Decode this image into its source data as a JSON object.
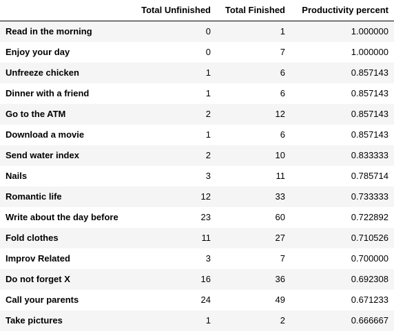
{
  "table": {
    "columns": [
      "",
      "Total Unfinished",
      "Total Finished",
      "Productivity percent"
    ],
    "rows": [
      {
        "label": "Read in the morning",
        "unfinished": "0",
        "finished": "1",
        "productivity": "1.000000"
      },
      {
        "label": "Enjoy your day",
        "unfinished": "0",
        "finished": "7",
        "productivity": "1.000000"
      },
      {
        "label": "Unfreeze chicken",
        "unfinished": "1",
        "finished": "6",
        "productivity": "0.857143"
      },
      {
        "label": "Dinner with a friend",
        "unfinished": "1",
        "finished": "6",
        "productivity": "0.857143"
      },
      {
        "label": "Go to the ATM",
        "unfinished": "2",
        "finished": "12",
        "productivity": "0.857143"
      },
      {
        "label": "Download a movie",
        "unfinished": "1",
        "finished": "6",
        "productivity": "0.857143"
      },
      {
        "label": "Send water index",
        "unfinished": "2",
        "finished": "10",
        "productivity": "0.833333"
      },
      {
        "label": "Nails",
        "unfinished": "3",
        "finished": "11",
        "productivity": "0.785714"
      },
      {
        "label": "Romantic life",
        "unfinished": "12",
        "finished": "33",
        "productivity": "0.733333"
      },
      {
        "label": "Write about the day before",
        "unfinished": "23",
        "finished": "60",
        "productivity": "0.722892"
      },
      {
        "label": "Fold clothes",
        "unfinished": "11",
        "finished": "27",
        "productivity": "0.710526"
      },
      {
        "label": "Improv Related",
        "unfinished": "3",
        "finished": "7",
        "productivity": "0.700000"
      },
      {
        "label": "Do not forget X",
        "unfinished": "16",
        "finished": "36",
        "productivity": "0.692308"
      },
      {
        "label": "Call your parents",
        "unfinished": "24",
        "finished": "49",
        "productivity": "0.671233"
      },
      {
        "label": "Take pictures",
        "unfinished": "1",
        "finished": "2",
        "productivity": "0.666667"
      }
    ]
  }
}
